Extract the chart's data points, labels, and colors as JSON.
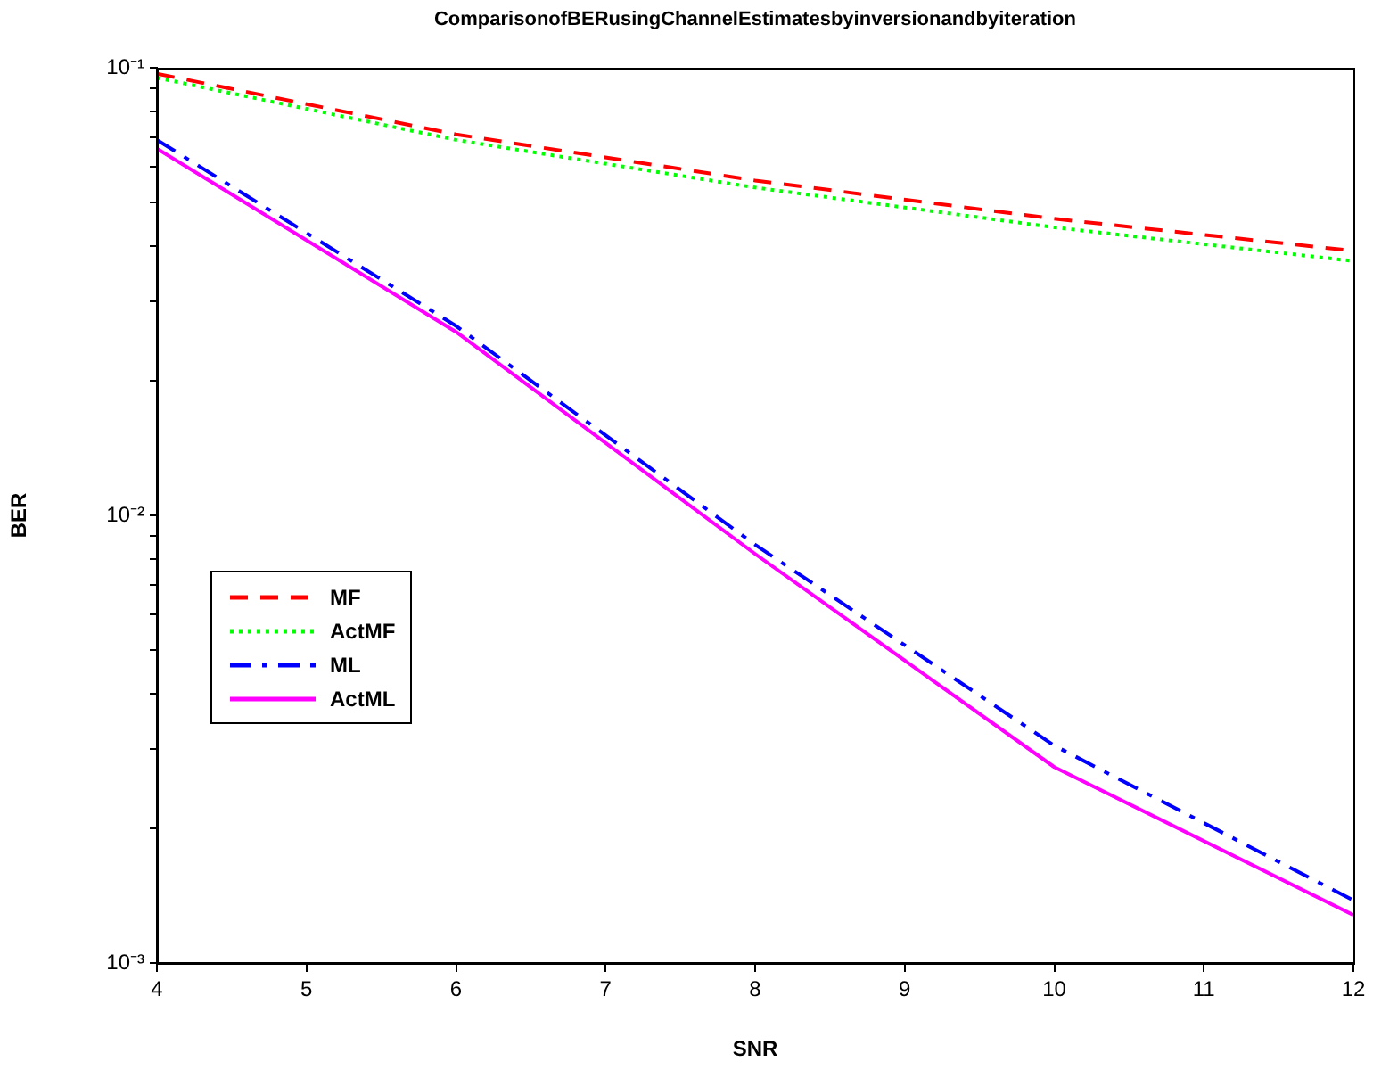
{
  "chart_data": {
    "type": "line",
    "title": "ComparisonofBERusingChannelEstimatesbyinversionandbyiteration",
    "xlabel": "SNR",
    "ylabel": "BER",
    "x": [
      4,
      6,
      8,
      10,
      12
    ],
    "series": [
      {
        "name": "MF",
        "color": "#ff0000",
        "line_style": "dashed",
        "values": [
          0.097,
          0.071,
          0.056,
          0.046,
          0.039
        ]
      },
      {
        "name": "ActMF",
        "color": "#00ff00",
        "line_style": "dotted",
        "values": [
          0.095,
          0.069,
          0.054,
          0.044,
          0.037
        ]
      },
      {
        "name": "ML",
        "color": "#0000ff",
        "line_style": "dashdot",
        "values": [
          0.069,
          0.0265,
          0.0086,
          0.00306,
          0.00138
        ]
      },
      {
        "name": "ActML",
        "color": "#ff00ff",
        "line_style": "solid",
        "values": [
          0.066,
          0.0257,
          0.0082,
          0.00274,
          0.00128
        ]
      }
    ],
    "xlim": [
      4,
      12
    ],
    "xticks": [
      4,
      5,
      6,
      7,
      8,
      9,
      10,
      11,
      12
    ],
    "ylim": [
      0.001,
      0.1
    ],
    "yticks": [
      {
        "value": 0.001,
        "label": "10⁻³"
      },
      {
        "value": 0.002,
        "label": null
      },
      {
        "value": 0.003,
        "label": null
      },
      {
        "value": 0.004,
        "label": null
      },
      {
        "value": 0.005,
        "label": null
      },
      {
        "value": 0.006,
        "label": null
      },
      {
        "value": 0.007,
        "label": null
      },
      {
        "value": 0.008,
        "label": null
      },
      {
        "value": 0.009,
        "label": null
      },
      {
        "value": 0.01,
        "label": "10⁻²"
      },
      {
        "value": 0.02,
        "label": null
      },
      {
        "value": 0.03,
        "label": null
      },
      {
        "value": 0.04,
        "label": null
      },
      {
        "value": 0.05,
        "label": null
      },
      {
        "value": 0.06,
        "label": null
      },
      {
        "value": 0.07,
        "label": null
      },
      {
        "value": 0.08,
        "label": null
      },
      {
        "value": 0.09,
        "label": null
      },
      {
        "value": 0.1,
        "label": "10⁻¹"
      }
    ],
    "log": "y",
    "grid": false,
    "legend": "left",
    "marker": "none"
  }
}
